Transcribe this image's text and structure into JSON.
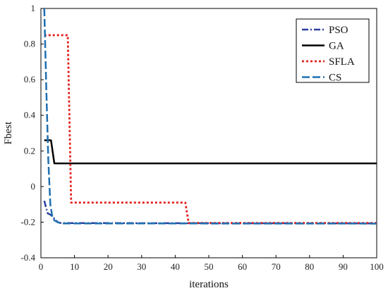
{
  "chart_data": {
    "type": "line",
    "xlabel": "iterations",
    "ylabel": "Fbest",
    "xlim": [
      0,
      100
    ],
    "ylim": [
      -0.4,
      1
    ],
    "xticks": [
      "0",
      "10",
      "20",
      "30",
      "40",
      "50",
      "60",
      "70",
      "80",
      "90",
      "100"
    ],
    "yticks": [
      "-0.4",
      "-0.2",
      "0",
      "0.2",
      "0.4",
      "0.6",
      "0.8",
      "1"
    ],
    "grid": false,
    "legend_position": "top-right",
    "series": [
      {
        "name": "PSO",
        "color": "#2a3fa0",
        "dash": "dashdot",
        "x": [
          1,
          2,
          3,
          4,
          5,
          6,
          100
        ],
        "y": [
          -0.08,
          -0.15,
          -0.16,
          -0.18,
          -0.2,
          -0.205,
          -0.207
        ]
      },
      {
        "name": "GA",
        "color": "#000000",
        "dash": "solid",
        "x": [
          1,
          3,
          4,
          100
        ],
        "y": [
          0.26,
          0.26,
          0.13,
          0.13
        ]
      },
      {
        "name": "SFLA",
        "color": "#e0201c",
        "dash": "dotted",
        "x": [
          1,
          8,
          9,
          43,
          44,
          100
        ],
        "y": [
          0.85,
          0.85,
          -0.09,
          -0.09,
          -0.205,
          -0.205
        ]
      },
      {
        "name": "CS",
        "color": "#1f6fb0",
        "dash": "dashed",
        "x": [
          1,
          1.6,
          2.2,
          2.8,
          3.4,
          4,
          5,
          6,
          100
        ],
        "y": [
          1,
          0.55,
          0.15,
          -0.1,
          -0.17,
          -0.19,
          -0.2,
          -0.207,
          -0.208
        ]
      }
    ]
  }
}
